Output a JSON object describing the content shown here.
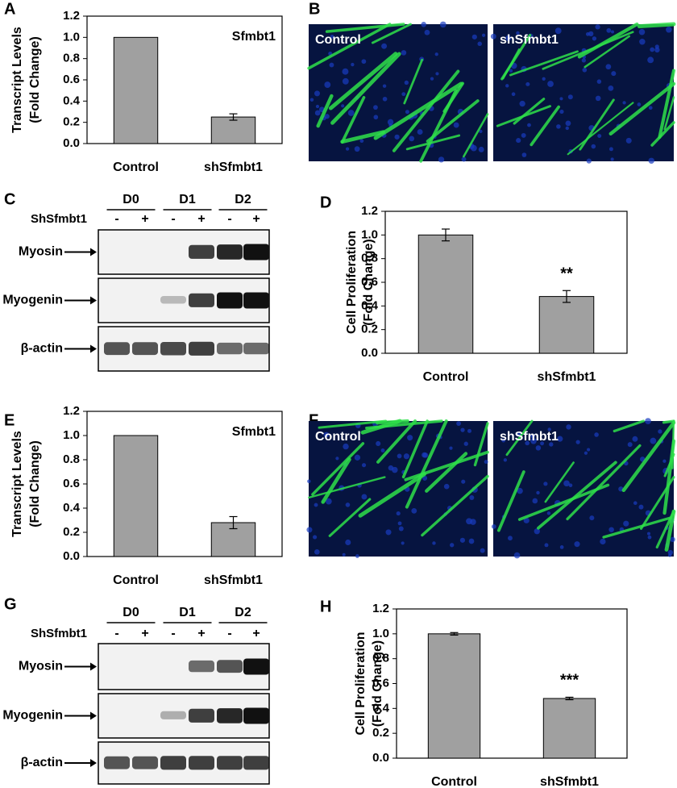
{
  "chart_data": [
    {
      "type": "bar",
      "panel": "A",
      "ylabel": [
        "Transcript Levels",
        "(Fold Change)"
      ],
      "annotation": "Sfmbt1",
      "categories": [
        "Control",
        "shSfmbt1"
      ],
      "values": [
        1.0,
        0.25
      ],
      "errors": [
        null,
        0.03
      ],
      "significance": [
        null,
        null
      ],
      "color": "#a0a0a0",
      "ylim": [
        0,
        1.2
      ],
      "yticks": [
        {
          "value": 0,
          "label": "0.0"
        },
        0.2,
        0.4,
        0.6,
        0.8,
        {
          "value": 1,
          "label": "1.0"
        },
        1.2
      ]
    },
    {
      "type": "bar",
      "panel": "D",
      "ylabel": [
        "Cell Proliferation",
        "(Fold Change)"
      ],
      "annotation": null,
      "categories": [
        "Control",
        "shSfmbt1"
      ],
      "values": [
        1.0,
        0.48
      ],
      "errors": [
        0.05,
        0.05
      ],
      "significance": [
        null,
        "**"
      ],
      "color": "#a0a0a0",
      "ylim": [
        0,
        1.2
      ],
      "yticks": [
        {
          "value": 0,
          "label": "0.0"
        },
        0.2,
        0.4,
        0.6,
        0.8,
        {
          "value": 1,
          "label": "1.0"
        },
        1.2
      ]
    },
    {
      "type": "bar",
      "panel": "E",
      "ylabel": [
        "Transcript Levels",
        "(Fold Change)"
      ],
      "annotation": "Sfmbt1",
      "categories": [
        "Control",
        "shSfmbt1"
      ],
      "values": [
        1.0,
        0.28
      ],
      "errors": [
        null,
        0.05
      ],
      "significance": [
        null,
        null
      ],
      "color": "#a0a0a0",
      "ylim": [
        0,
        1.2
      ],
      "yticks": [
        {
          "value": 0,
          "label": "0.0"
        },
        0.2,
        0.4,
        0.6,
        0.8,
        {
          "value": 1,
          "label": "1.0"
        },
        1.2
      ]
    },
    {
      "type": "bar",
      "panel": "H",
      "ylabel": [
        "Cell Proliferation",
        "(Fold Change)"
      ],
      "annotation": null,
      "categories": [
        "Control",
        "shSfmbt1"
      ],
      "values": [
        1.0,
        0.48
      ],
      "errors": [
        0.01,
        0.01
      ],
      "significance": [
        null,
        "***"
      ],
      "color": "#a0a0a0",
      "ylim": [
        0,
        1.2
      ],
      "yticks": [
        {
          "value": 0,
          "label": "0.0"
        },
        0.2,
        0.4,
        0.6,
        0.8,
        {
          "value": 1,
          "label": "1.0"
        },
        1.2
      ]
    }
  ],
  "image_panels": [
    {
      "panel": "B",
      "labels": [
        "Control",
        "shSfmbt1"
      ]
    },
    {
      "panel": "F",
      "labels": [
        "Control",
        "shSfmbt1"
      ]
    }
  ],
  "blot_panels": [
    {
      "panel": "C",
      "days": [
        "D0",
        "D1",
        "D2"
      ],
      "row_label": "ShSfmbt1",
      "signs": [
        "-",
        "+",
        "-",
        "+",
        "-",
        "+"
      ],
      "bands": [
        "Myosin",
        "Myogenin",
        "β-actin"
      ]
    },
    {
      "panel": "G",
      "days": [
        "D0",
        "D1",
        "D2"
      ],
      "row_label": "ShSfmbt1",
      "signs": [
        "-",
        "+",
        "-",
        "+",
        "-",
        "+"
      ],
      "bands": [
        "Myosin",
        "Myogenin",
        "β-actin"
      ]
    }
  ]
}
